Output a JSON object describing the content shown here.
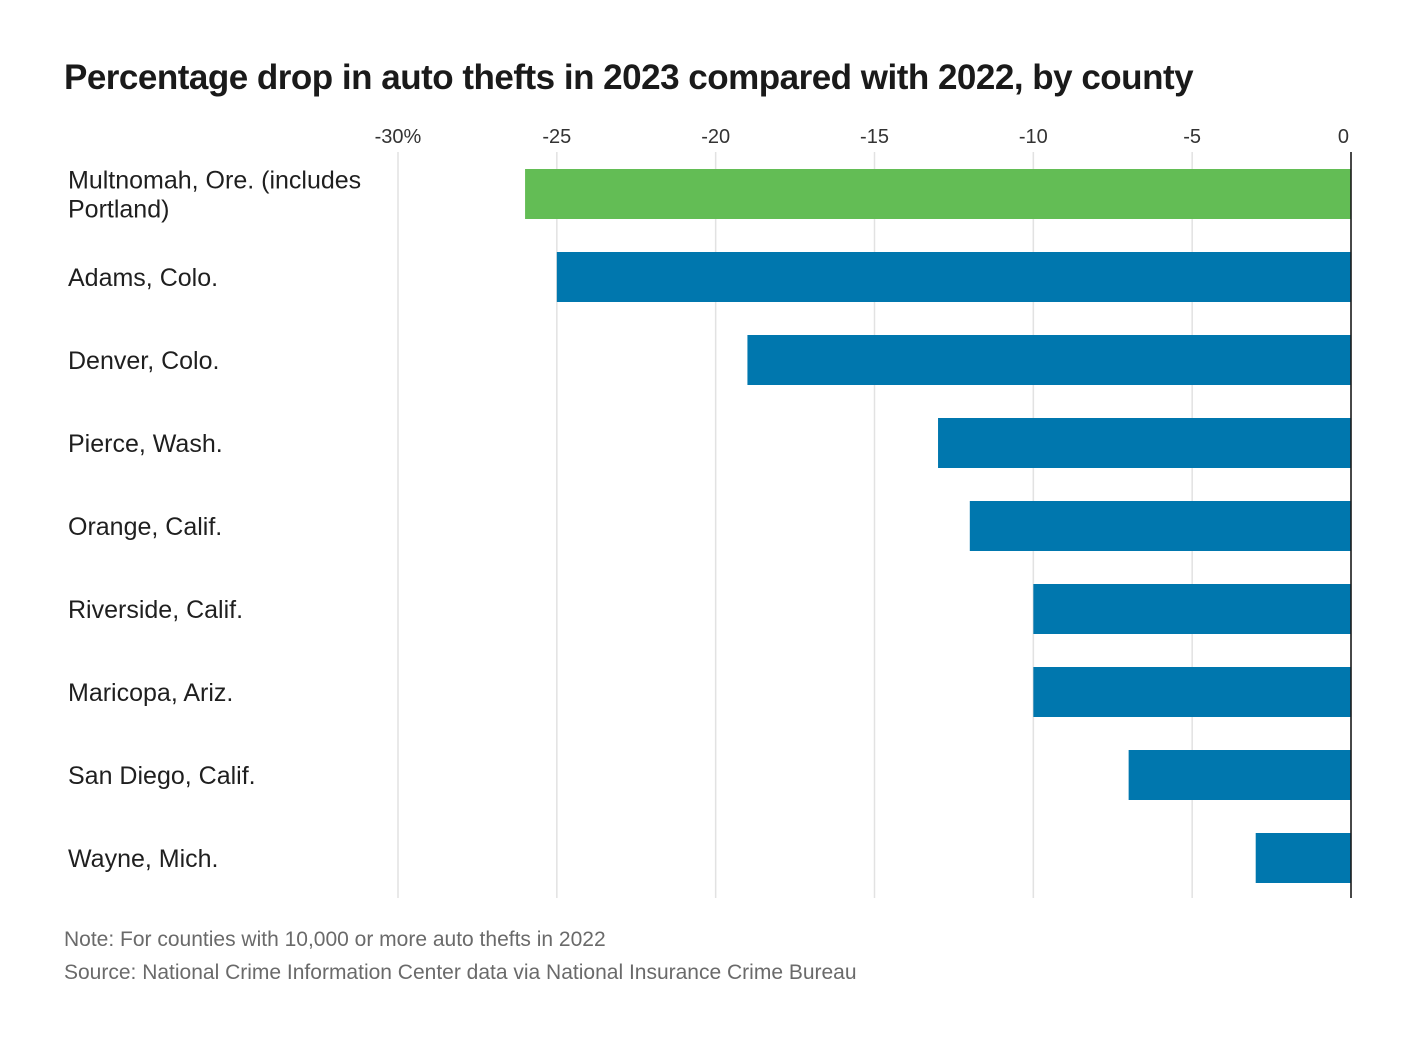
{
  "chart_data": {
    "type": "bar",
    "orientation": "horizontal",
    "title": "Percentage drop in auto thefts in 2023 compared with 2022, by county",
    "categories": [
      "Multnomah, Ore. (includes Portland)",
      "Adams, Colo.",
      "Denver, Colo.",
      "Pierce, Wash.",
      "Orange, Calif.",
      "Riverside, Calif.",
      "Maricopa, Ariz.",
      "San Diego, Calif.",
      "Wayne, Mich."
    ],
    "category_lines": [
      [
        "Multnomah, Ore. (includes",
        "Portland)"
      ],
      [
        "Adams, Colo."
      ],
      [
        "Denver, Colo."
      ],
      [
        "Pierce, Wash."
      ],
      [
        "Orange, Calif."
      ],
      [
        "Riverside, Calif."
      ],
      [
        "Maricopa, Ariz."
      ],
      [
        "San Diego, Calif."
      ],
      [
        "Wayne, Mich."
      ]
    ],
    "values": [
      -26,
      -25,
      -19,
      -13,
      -12,
      -10,
      -10,
      -7,
      -3
    ],
    "highlight_index": 0,
    "xlim": [
      -30,
      0
    ],
    "ticks": [
      -30,
      -25,
      -20,
      -15,
      -10,
      -5,
      0
    ],
    "tick_labels": [
      "-30%",
      "-25",
      "-20",
      "-15",
      "-10",
      "-5",
      "0"
    ],
    "grid": true,
    "colors": {
      "highlight": "#63bd55",
      "bar": "#0077ae",
      "grid": "#e2e2e2",
      "axis": "#1a1a1a"
    }
  },
  "footer": {
    "note": "Note: For counties with 10,000 or more auto thefts in 2022",
    "source": "Source: National Crime Information Center data via National Insurance Crime Bureau"
  }
}
